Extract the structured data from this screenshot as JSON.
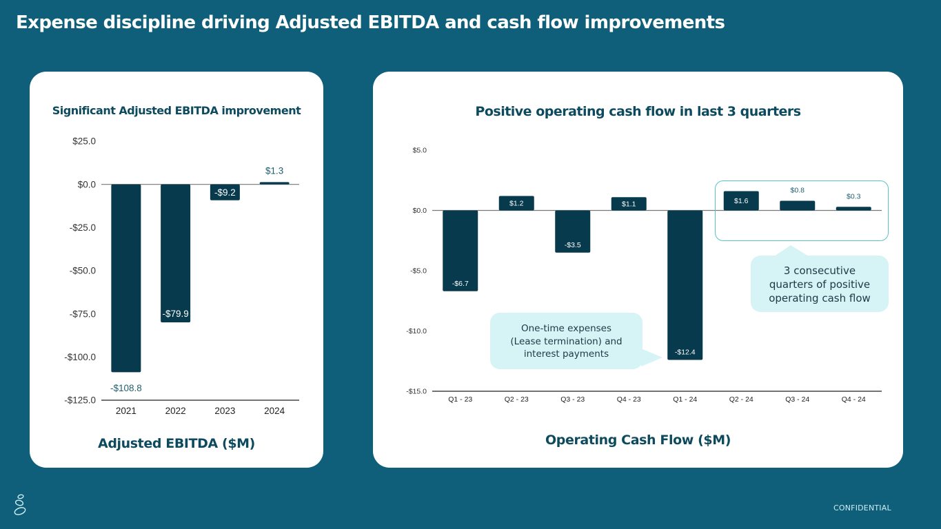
{
  "slide": {
    "title": "Expense discipline driving Adjusted EBITDA and cash flow improvements",
    "confidential_label": "CONFIDENTIAL",
    "logo_icon": "stacked-stones-icon"
  },
  "colors": {
    "background": "#0f5f7a",
    "bar": "#063a4c",
    "heading": "#0d4a5e",
    "callout_fill": "#d6f3f6",
    "highlight_border": "#57c3c9"
  },
  "left_card": {
    "heading": "Significant Adjusted EBITDA improvement",
    "footer": "Adjusted EBITDA ($M)"
  },
  "right_card": {
    "heading": "Positive operating cash flow in last 3 quarters",
    "footer": "Operating Cash Flow ($M)",
    "callout_one_time": [
      "One-time expenses",
      "(Lease termination) and",
      "interest payments"
    ],
    "callout_consecutive": [
      "3 consecutive",
      "quarters of positive",
      "operating cash flow"
    ]
  },
  "chart_data": [
    {
      "type": "bar",
      "title": "Significant Adjusted EBITDA improvement",
      "xlabel": "Adjusted EBITDA ($M)",
      "ylabel": "",
      "categories": [
        "2021",
        "2022",
        "2023",
        "2024"
      ],
      "values": [
        -108.8,
        -79.9,
        -9.2,
        1.3
      ],
      "data_labels": [
        "-$108.8",
        "-$79.9",
        "-$9.2",
        "$1.3"
      ],
      "ylim": [
        -125,
        25
      ],
      "yticks": [
        25,
        0,
        -25,
        -50,
        -75,
        -100,
        -125
      ],
      "ytick_labels": [
        "$25.0",
        "$0.0",
        "-$25.0",
        "-$50.0",
        "-$75.0",
        "-$100.0",
        "-$125.0"
      ],
      "grid": false,
      "legend": "none"
    },
    {
      "type": "bar",
      "title": "Positive operating cash flow in last 3 quarters",
      "xlabel": "Operating Cash Flow ($M)",
      "ylabel": "",
      "categories": [
        "Q1 - 23",
        "Q2 - 23",
        "Q3 - 23",
        "Q4 - 23",
        "Q1 - 24",
        "Q2 - 24",
        "Q3 - 24",
        "Q4 - 24"
      ],
      "values": [
        -6.7,
        1.2,
        -3.5,
        1.1,
        -12.4,
        1.6,
        0.8,
        0.3
      ],
      "data_labels": [
        "-$6.7",
        "$1.2",
        "-$3.5",
        "$1.1",
        "-$12.4",
        "$1.6",
        "$0.8",
        "$0.3"
      ],
      "ylim": [
        -15,
        5
      ],
      "yticks": [
        5,
        0,
        -5,
        -10,
        -15
      ],
      "ytick_labels": [
        "$5.0",
        "$0.0",
        "-$5.0",
        "-$10.0",
        "-$15.0"
      ],
      "grid": false,
      "legend": "none",
      "annotations": [
        "One-time expenses (Lease termination) and interest payments",
        "3 consecutive quarters of positive operating cash flow"
      ]
    }
  ]
}
